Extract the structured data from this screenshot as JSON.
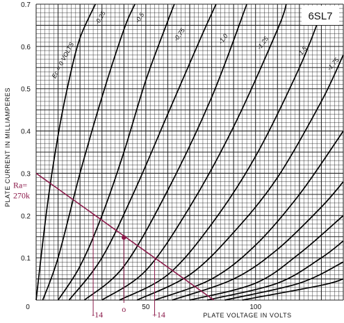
{
  "chart_data": {
    "type": "line",
    "tube_label": "6SL7",
    "xlabel": "PLATE VOLTAGE IN VOLTS",
    "ylabel": "PLATE CURRENT IN MILLIAMPERES",
    "xlim": [
      0,
      140
    ],
    "ylim": [
      0,
      0.7
    ],
    "grid": true,
    "x_ticks": [
      {
        "value": 0,
        "label": "0"
      },
      {
        "value": 50,
        "label": "50"
      },
      {
        "value": 100,
        "label": "100"
      }
    ],
    "y_ticks": [
      {
        "value": 0.1,
        "label": "0.1"
      },
      {
        "value": 0.2,
        "label": "0.2"
      },
      {
        "value": 0.3,
        "label": "0.3"
      },
      {
        "value": 0.4,
        "label": "0.4"
      },
      {
        "value": 0.5,
        "label": "0.5"
      },
      {
        "value": 0.6,
        "label": "0.6"
      },
      {
        "value": 0.7,
        "label": "0.7"
      }
    ],
    "series": [
      {
        "name": "Ec = 0 VOLTS",
        "x": [
          0,
          5,
          10,
          15,
          20,
          27
        ],
        "y": [
          0,
          0.22,
          0.39,
          0.52,
          0.62,
          0.7
        ]
      },
      {
        "name": "-0.25",
        "x": [
          3,
          10,
          20,
          30,
          40,
          45
        ],
        "y": [
          0,
          0.1,
          0.3,
          0.48,
          0.64,
          0.7
        ]
      },
      {
        "name": "-0.5",
        "x": [
          10,
          20,
          30,
          40,
          50,
          60,
          63
        ],
        "y": [
          0,
          0.08,
          0.2,
          0.35,
          0.52,
          0.66,
          0.7
        ]
      },
      {
        "name": "-0.75",
        "x": [
          15,
          30,
          45,
          60,
          75,
          82
        ],
        "y": [
          0,
          0.1,
          0.26,
          0.44,
          0.62,
          0.7
        ]
      },
      {
        "name": "-1.0",
        "x": [
          22,
          40,
          60,
          80,
          96
        ],
        "y": [
          0,
          0.08,
          0.26,
          0.48,
          0.7
        ]
      },
      {
        "name": "-1.25",
        "x": [
          30,
          50,
          70,
          90,
          110,
          114
        ],
        "y": [
          0,
          0.07,
          0.22,
          0.41,
          0.64,
          0.7
        ]
      },
      {
        "name": "-1.5",
        "x": [
          38,
          60,
          80,
          100,
          120,
          130
        ],
        "y": [
          0,
          0.06,
          0.18,
          0.34,
          0.55,
          0.68
        ]
      },
      {
        "name": "-1.75",
        "x": [
          46,
          70,
          90,
          110,
          130,
          140
        ],
        "y": [
          0,
          0.06,
          0.16,
          0.29,
          0.47,
          0.58
        ]
      },
      {
        "name": "",
        "x": [
          54,
          80,
          100,
          120,
          140
        ],
        "y": [
          0,
          0.05,
          0.13,
          0.25,
          0.4
        ]
      },
      {
        "name": "",
        "x": [
          62,
          90,
          110,
          130,
          140
        ],
        "y": [
          0,
          0.05,
          0.12,
          0.22,
          0.28
        ]
      },
      {
        "name": "",
        "x": [
          70,
          100,
          120,
          140
        ],
        "y": [
          0,
          0.04,
          0.11,
          0.2
        ]
      },
      {
        "name": "",
        "x": [
          78,
          110,
          130,
          140
        ],
        "y": [
          0,
          0.04,
          0.1,
          0.14
        ]
      },
      {
        "name": "",
        "x": [
          86,
          120,
          140
        ],
        "y": [
          0,
          0.04,
          0.09
        ]
      },
      {
        "name": "",
        "x": [
          94,
          130,
          140
        ],
        "y": [
          0,
          0.035,
          0.05
        ]
      }
    ],
    "curve_labels": [
      {
        "text": "Ec = 0 VOLTS",
        "x": 13,
        "y": 0.565,
        "angle": -62
      },
      {
        "text": "-0.25",
        "x": 30,
        "y": 0.665,
        "angle": -60
      },
      {
        "text": "-0.5",
        "x": 48,
        "y": 0.665,
        "angle": -58
      },
      {
        "text": "-0.75",
        "x": 66,
        "y": 0.625,
        "angle": -55
      },
      {
        "text": "-1.0",
        "x": 86,
        "y": 0.615,
        "angle": -55
      },
      {
        "text": "-1.25",
        "x": 104,
        "y": 0.605,
        "angle": -53
      },
      {
        "text": "-1.5",
        "x": 122,
        "y": 0.585,
        "angle": -52
      },
      {
        "text": "-1.75",
        "x": 136,
        "y": 0.555,
        "angle": -50
      }
    ],
    "load_line": {
      "label_line1": "Ra=",
      "label_line2": "270k",
      "x": [
        0,
        81
      ],
      "y": [
        0.3,
        0
      ],
      "color": "#8b1a4a"
    },
    "operating_point": {
      "x": 40,
      "y": 0.148,
      "label": "o"
    },
    "swing_markers": [
      {
        "label": "-14",
        "x": 26,
        "y": 0.204
      },
      {
        "label": "+14",
        "x": 54,
        "y": 0.1
      }
    ],
    "colors": {
      "grid": "#222222",
      "curves": "#000000",
      "annotation": "#8b1a4a"
    }
  }
}
